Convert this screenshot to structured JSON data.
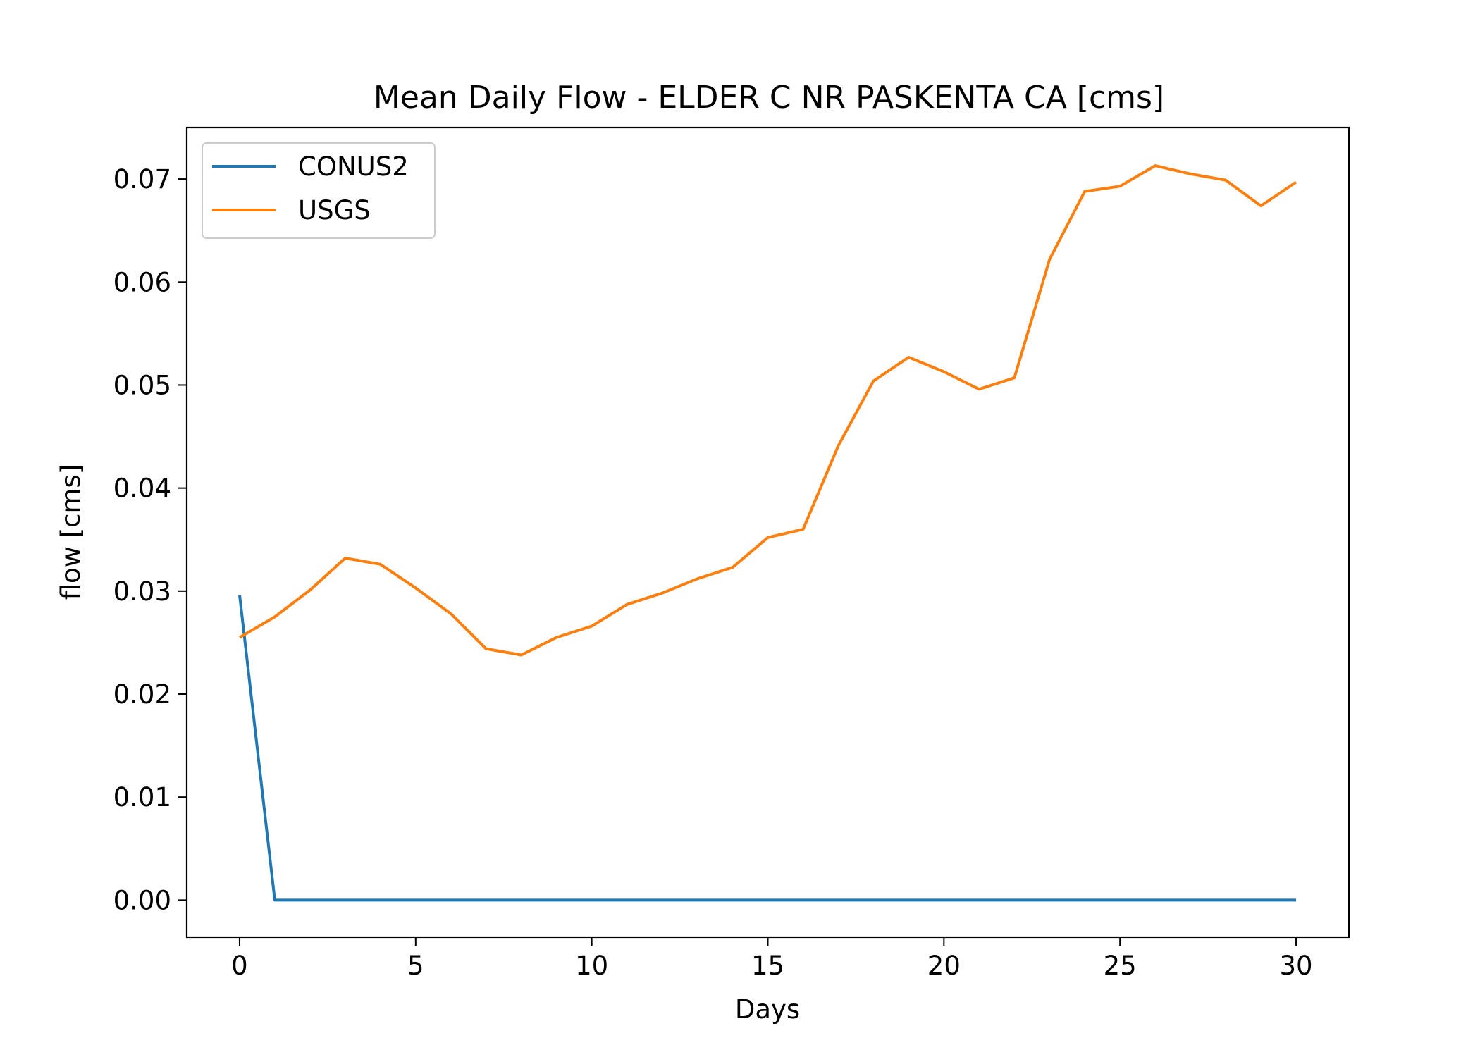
{
  "chart_data": {
    "type": "line",
    "title": "Mean Daily Flow - ELDER C NR PASKENTA CA [cms]",
    "xlabel": "Days",
    "ylabel": "flow [cms]",
    "xlim": [
      -1.5,
      31.5
    ],
    "ylim": [
      -0.0036,
      0.075
    ],
    "xticks": [
      0,
      5,
      10,
      15,
      20,
      25,
      30
    ],
    "xtick_labels": [
      "0",
      "5",
      "10",
      "15",
      "20",
      "25",
      "30"
    ],
    "yticks": [
      0.0,
      0.01,
      0.02,
      0.03,
      0.04,
      0.05,
      0.06,
      0.07
    ],
    "ytick_labels": [
      "0.00",
      "0.01",
      "0.02",
      "0.03",
      "0.04",
      "0.05",
      "0.06",
      "0.07"
    ],
    "grid": false,
    "legend_position": "top-left",
    "x": [
      0,
      1,
      2,
      3,
      4,
      5,
      6,
      7,
      8,
      9,
      10,
      11,
      12,
      13,
      14,
      15,
      16,
      17,
      18,
      19,
      20,
      21,
      22,
      23,
      24,
      25,
      26,
      27,
      28,
      29,
      30
    ],
    "series": [
      {
        "name": "CONUS2",
        "color": "#1f77b4",
        "values": [
          0.0296,
          0,
          0,
          0,
          0,
          0,
          0,
          0,
          0,
          0,
          0,
          0,
          0,
          0,
          0,
          0,
          0,
          0,
          0,
          0,
          0,
          0,
          0,
          0,
          0,
          0,
          0,
          0,
          0,
          0,
          0
        ]
      },
      {
        "name": "USGS",
        "color": "#ff7f0e",
        "values": [
          0.0255,
          0.0275,
          0.0301,
          0.0332,
          0.0326,
          0.0303,
          0.0278,
          0.0244,
          0.0238,
          0.0255,
          0.0266,
          0.0287,
          0.0298,
          0.0312,
          0.0323,
          0.0352,
          0.036,
          0.0441,
          0.0504,
          0.0527,
          0.0513,
          0.0496,
          0.0507,
          0.0622,
          0.0688,
          0.0693,
          0.0713,
          0.0705,
          0.0699,
          0.0674,
          0.0697
        ]
      }
    ]
  }
}
